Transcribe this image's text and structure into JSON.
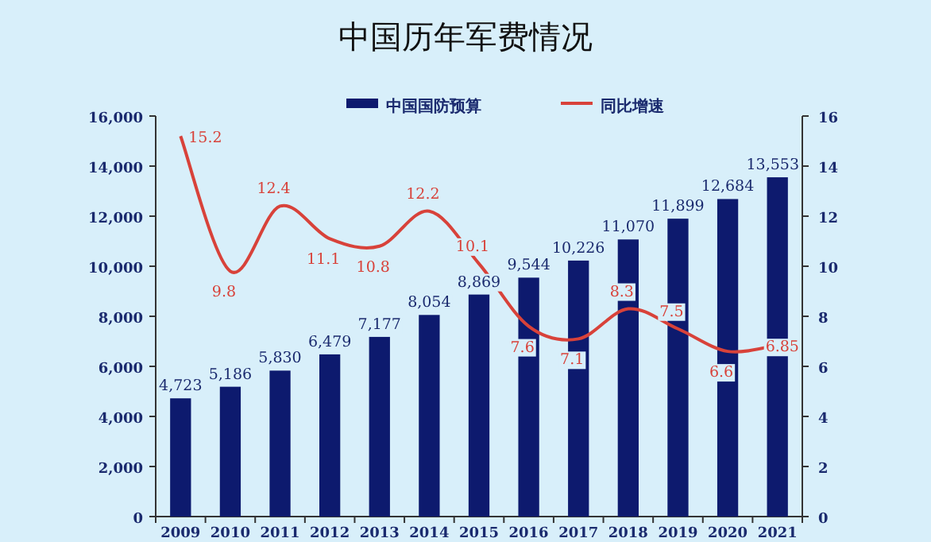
{
  "chart_data": {
    "type": "bar",
    "title": "中国历年军费情况",
    "categories": [
      "2009",
      "2010",
      "2011",
      "2012",
      "2013",
      "2014",
      "2015",
      "2016",
      "2017",
      "2018",
      "2019",
      "2020",
      "2021"
    ],
    "series": [
      {
        "name": "中国国防预算",
        "color": "#0d1a6e",
        "values": [
          4723,
          5186,
          5830,
          6479,
          7177,
          8054,
          8869,
          9544,
          10226,
          11070,
          11899,
          12684,
          13553
        ],
        "value_labels": [
          "4,723",
          "5,186",
          "5,830",
          "6,479",
          "7,177",
          "8,054",
          "8,869",
          "9,544",
          "10,226",
          "11,070",
          "11,899",
          "12,684",
          "13,553"
        ]
      },
      {
        "name": "同比增速",
        "type": "line",
        "axis": "y2",
        "color": "#d8423a",
        "values": [
          15.2,
          9.8,
          12.4,
          11.1,
          10.8,
          12.2,
          10.1,
          7.6,
          7.1,
          8.3,
          7.5,
          6.6,
          6.85
        ],
        "value_labels": [
          "15.2",
          "9.8",
          "12.4",
          "11.1",
          "10.8",
          "12.2",
          "10.1",
          "7.6",
          "7.1",
          "8.3",
          "7.5",
          "6.6",
          "6.85"
        ]
      }
    ],
    "ylim": [
      0,
      16000
    ],
    "yticks": [
      0,
      {
        "value": 2000,
        "label": "2,000"
      },
      {
        "value": 4000,
        "label": "4,000"
      },
      {
        "value": 6000,
        "label": "6,000"
      },
      {
        "value": 8000,
        "label": "8,000"
      },
      {
        "value": 10000,
        "label": "10,000"
      },
      {
        "value": 12000,
        "label": "12,000"
      },
      {
        "value": 14000,
        "label": "14,000"
      },
      {
        "value": 16000,
        "label": "16,000"
      }
    ],
    "y2lim": [
      0,
      16
    ],
    "y2ticks": [
      0,
      2,
      4,
      6,
      8,
      10,
      12,
      14,
      16
    ],
    "legend": "top"
  }
}
